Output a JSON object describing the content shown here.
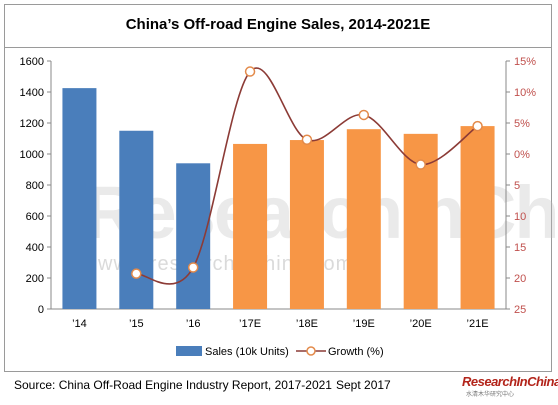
{
  "chart_data": {
    "type": "bar",
    "title": "China’s Off-road Engine Sales, 2014-2021E",
    "categories": [
      "’14",
      "’15",
      "’16",
      "’17E",
      "’18E",
      "’19E",
      "’20E",
      "’21E"
    ],
    "series": [
      {
        "name": "Sales (10k Units)",
        "type": "bar",
        "axis": "left",
        "values": [
          1425,
          1150,
          940,
          1065,
          1090,
          1160,
          1130,
          1180
        ],
        "colors": [
          "#4a7ebb",
          "#4a7ebb",
          "#4a7ebb",
          "#f79646",
          "#f79646",
          "#f79646",
          "#f79646",
          "#f79646"
        ]
      },
      {
        "name": "Growth (%)",
        "type": "line",
        "axis": "right",
        "values": [
          null,
          -19.3,
          -18.3,
          13.3,
          2.3,
          6.3,
          -1.7,
          4.5
        ],
        "color": "#8c3b36"
      }
    ],
    "y_left": {
      "min": 0,
      "max": 1600,
      "ticks": [
        0,
        200,
        400,
        600,
        800,
        1000,
        1200,
        1400,
        1600
      ]
    },
    "y_right": {
      "min": -25,
      "max": 15,
      "tick_values": [
        15,
        10,
        5,
        0,
        -5,
        -10,
        -15,
        -20,
        -25
      ],
      "tick_labels": [
        "15%",
        "10%",
        "5%",
        "0%",
        "5",
        "10",
        "15",
        "20",
        "25"
      ],
      "color": "#c0504d"
    },
    "legend": {
      "position": "bottom"
    },
    "grid": false
  },
  "footer": {
    "source": "Source: China Off-Road Engine Industry Report, 2017-2021",
    "date": "Sept 2017"
  },
  "logo": {
    "main": "ResearchInChina",
    "sub": "水清木华研究中心"
  },
  "watermark": {
    "main": "ResearchInChina",
    "url": "www.researchinchina.com"
  }
}
